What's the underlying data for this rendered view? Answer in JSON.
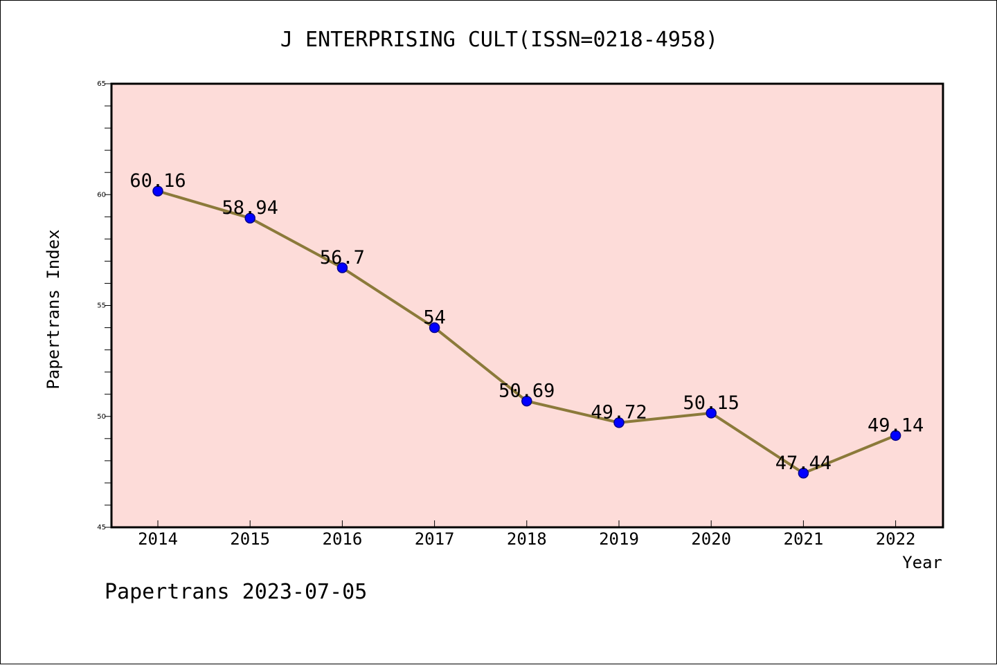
{
  "chart_data": {
    "type": "line",
    "title": "J ENTERPRISING CULT(ISSN=0218-4958)",
    "xlabel": "Year",
    "ylabel": "Papertrans Index",
    "categories": [
      "2014",
      "2015",
      "2016",
      "2017",
      "2018",
      "2019",
      "2020",
      "2021",
      "2022"
    ],
    "values": [
      60.16,
      58.94,
      56.7,
      54,
      50.69,
      49.72,
      50.15,
      47.44,
      49.14
    ],
    "data_labels": [
      "60.16",
      "58.94",
      "56.7",
      "54",
      "50.69",
      "49.72",
      "50.15",
      "47.44",
      "49.14"
    ],
    "ylim": [
      45,
      65
    ],
    "yticks": [
      45,
      50,
      55,
      60,
      65
    ],
    "grid": false,
    "legend": "none"
  },
  "footer": "Papertrans 2023-07-05",
  "colors": {
    "plot_background": "#fddcd9",
    "line": "#8b7a3a",
    "marker_fill": "#0000ff",
    "marker_edge": "#00008b",
    "frame": "#000000"
  }
}
